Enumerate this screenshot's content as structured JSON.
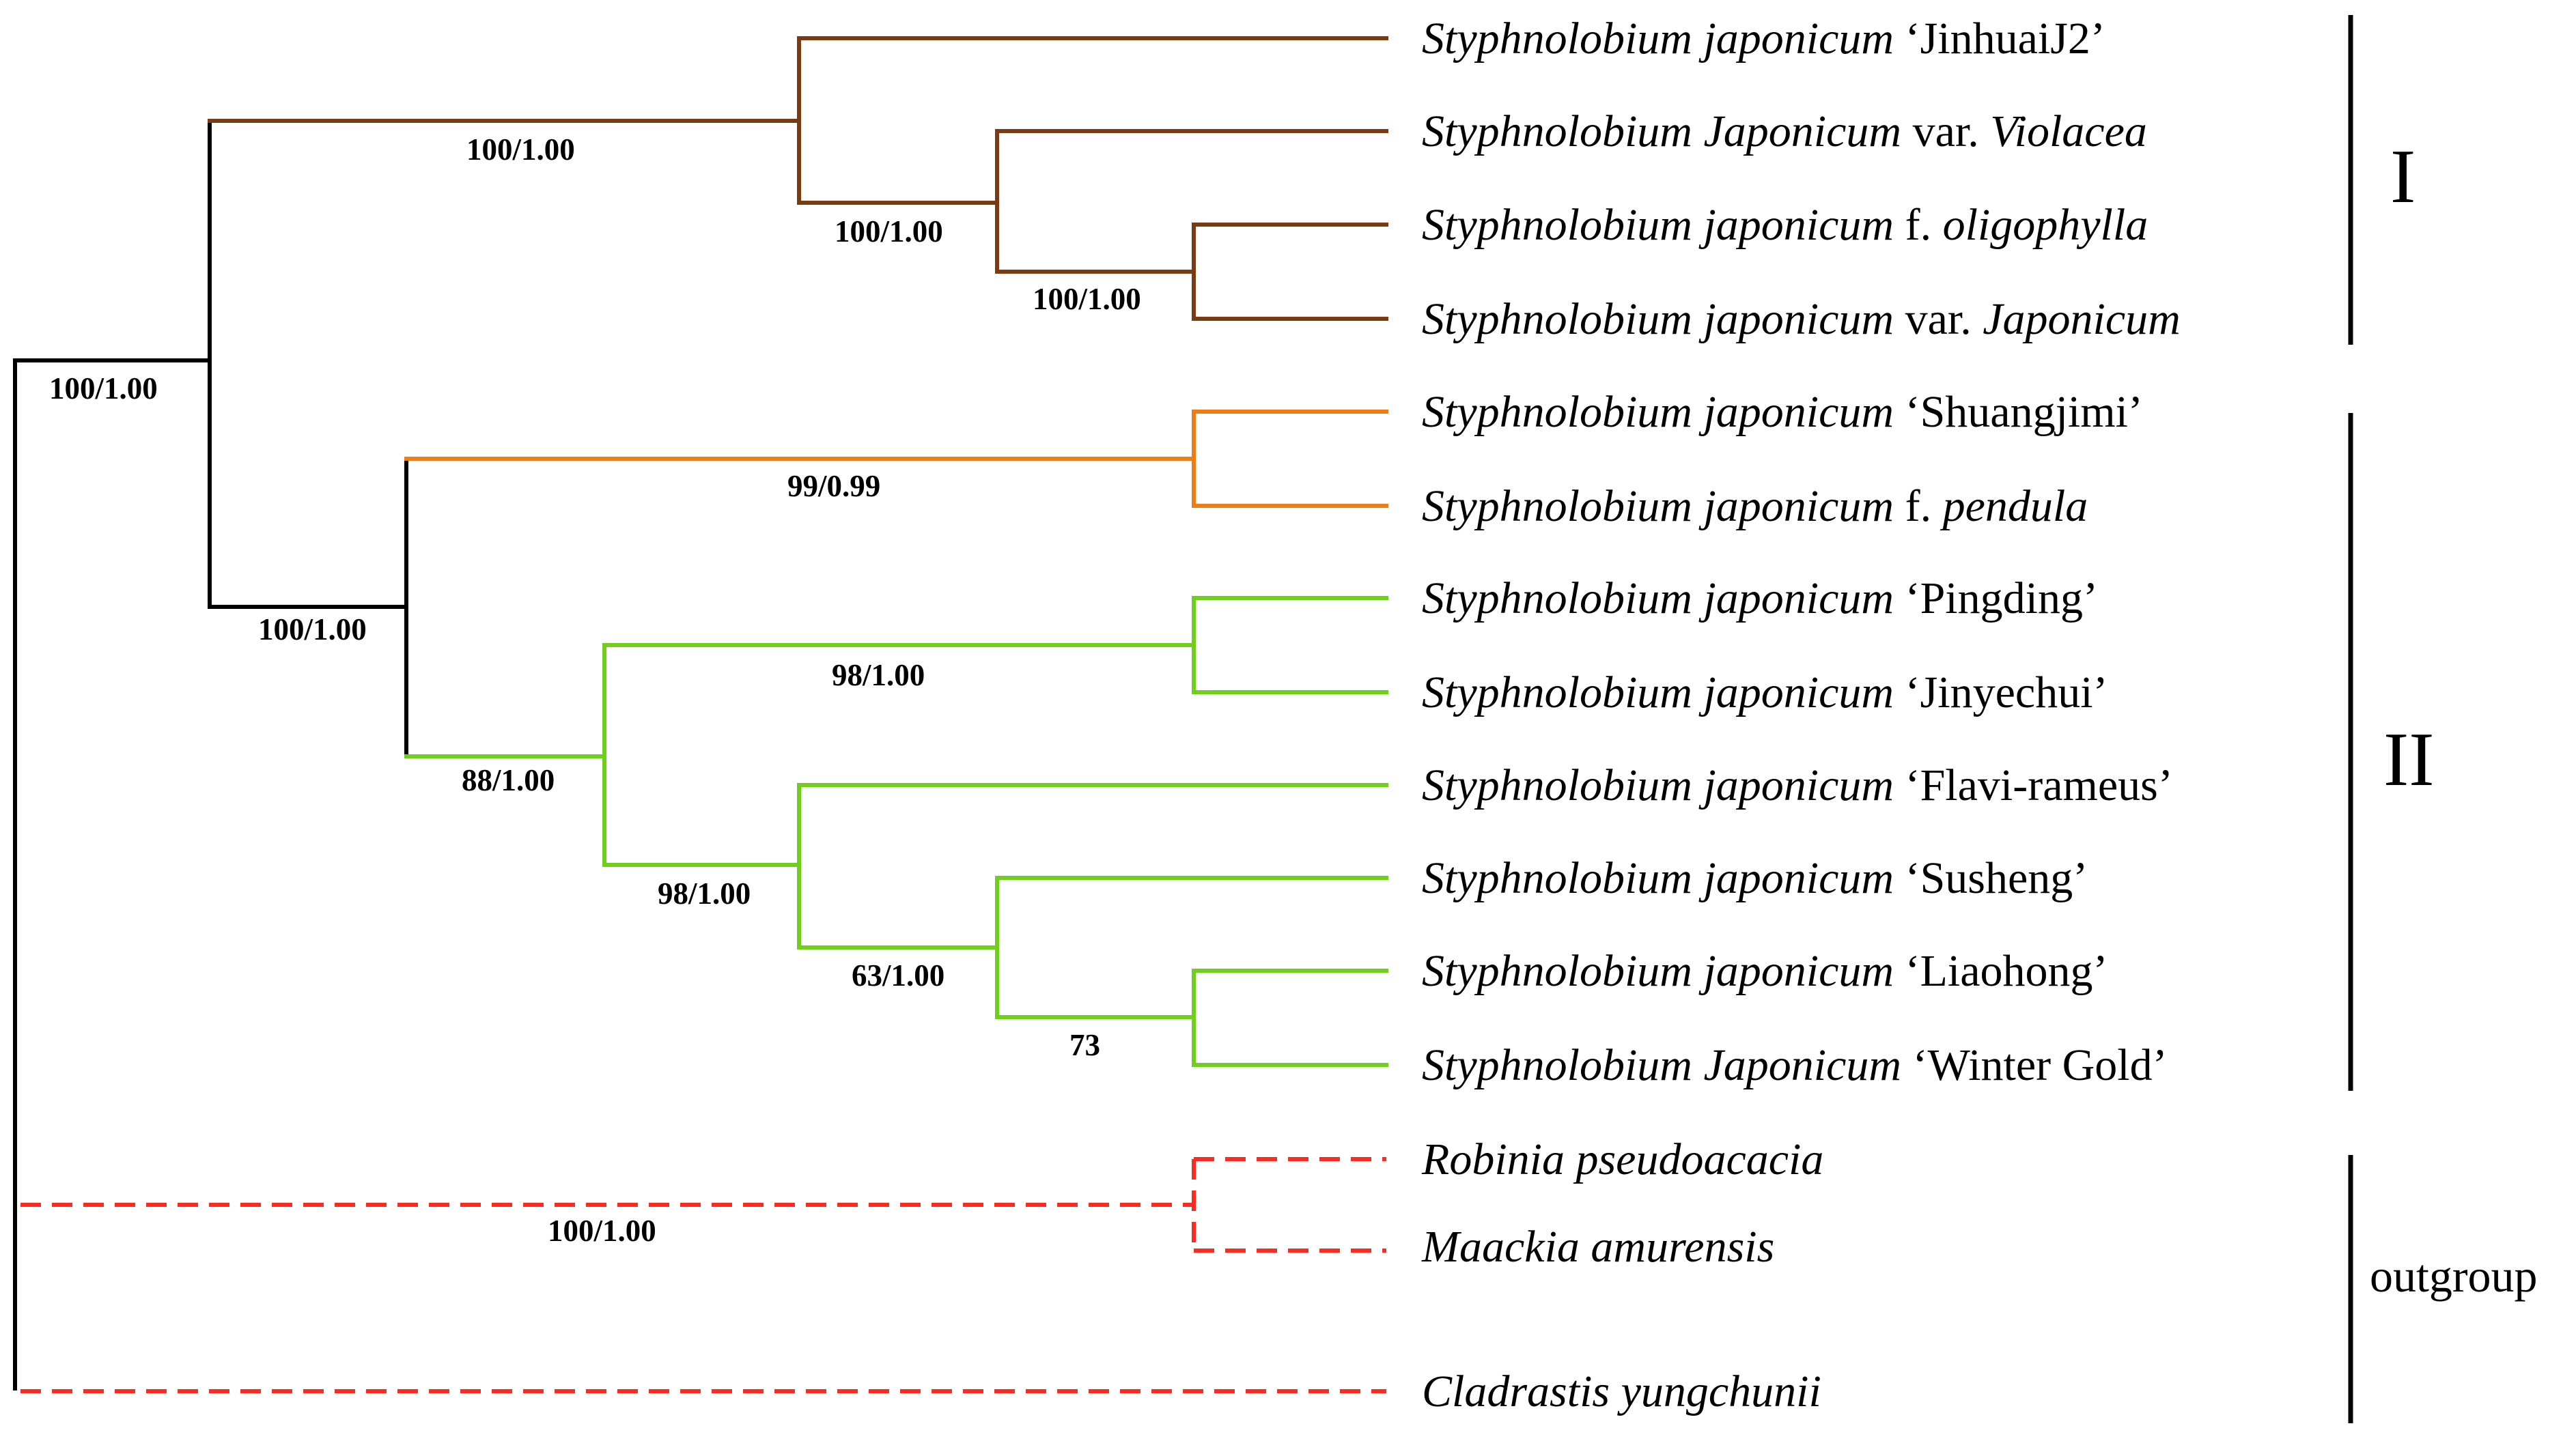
{
  "colors": {
    "root": "#000000",
    "clade1": "#7a3b12",
    "clade2a": "#f07c16",
    "clade2b": "#6fcf1a",
    "outgroup": "#ff2a1f"
  },
  "taxa": [
    {
      "genus": "Styphnolobium japonicum",
      "rank": "",
      "epithet": "",
      "cultivar": "‘JinhuaiJ2’"
    },
    {
      "genus": "Styphnolobium Japonicum",
      "rank": "var.",
      "epithet": "Violacea",
      "cultivar": ""
    },
    {
      "genus": "Styphnolobium japonicum",
      "rank": "f.",
      "epithet": "oligophylla",
      "cultivar": ""
    },
    {
      "genus": "Styphnolobium japonicum",
      "rank": "var.",
      "epithet": "Japonicum",
      "cultivar": ""
    },
    {
      "genus": "Styphnolobium japonicum",
      "rank": "",
      "epithet": "",
      "cultivar": "‘Shuangjimi’"
    },
    {
      "genus": "Styphnolobium japonicum",
      "rank": "f.",
      "epithet": "pendula",
      "cultivar": ""
    },
    {
      "genus": "Styphnolobium japonicum",
      "rank": "",
      "epithet": "",
      "cultivar": "‘Pingding’"
    },
    {
      "genus": "Styphnolobium japonicum",
      "rank": "",
      "epithet": "",
      "cultivar": "‘Jinyechui’"
    },
    {
      "genus": "Styphnolobium japonicum",
      "rank": "",
      "epithet": "",
      "cultivar": "‘Flavi-rameus’"
    },
    {
      "genus": "Styphnolobium japonicum",
      "rank": "",
      "epithet": "",
      "cultivar": "‘Susheng’"
    },
    {
      "genus": "Styphnolobium japonicum",
      "rank": "",
      "epithet": "",
      "cultivar": "‘Liaohong’"
    },
    {
      "genus": "Styphnolobium Japonicum",
      "rank": "",
      "epithet": "",
      "cultivar": "‘Winter Gold’"
    },
    {
      "genus": "Robinia pseudoacacia",
      "rank": "",
      "epithet": "",
      "cultivar": ""
    },
    {
      "genus": "Maackia amurensis",
      "rank": "",
      "epithet": "",
      "cultivar": ""
    },
    {
      "genus": "Cladrastis yungchunii",
      "rank": "",
      "epithet": "",
      "cultivar": ""
    }
  ],
  "support_values": {
    "clade1": "100/1.00",
    "clade1_inner": "100/1.00",
    "clade1_pair": "100/1.00",
    "ingroup": "100/1.00",
    "clade2": "100/1.00",
    "clade2a": "99/0.99",
    "clade2b": "88/1.00",
    "pingding_pair": "98/1.00",
    "flavi_group": "98/1.00",
    "susheng_group": "63/1.00",
    "liaohong_pair": "73",
    "outgroup_pair": "100/1.00"
  },
  "clade_labels": {
    "clade_1": "I",
    "clade_2": "II",
    "outgroup": "outgroup"
  }
}
